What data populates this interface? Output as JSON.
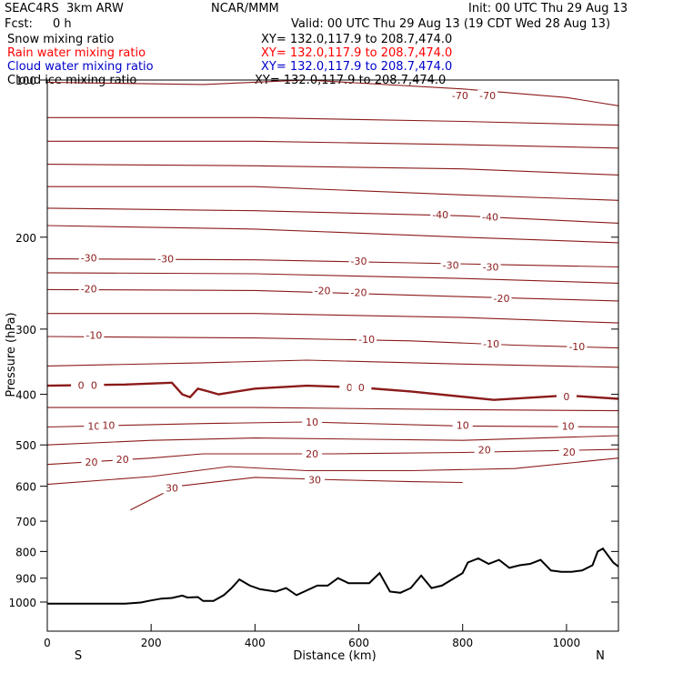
{
  "header": {
    "model": "SEAC4RS  3km ARW",
    "org": "NCAR/MMM",
    "init": "Init: 00 UTC Thu 29 Aug 13",
    "fcst_label": "Fcst:",
    "fcst_value": "0 h",
    "valid": "Valid: 00 UTC Thu 29 Aug 13 (19 CDT Wed 28 Aug 13)"
  },
  "fields": [
    {
      "label": "Snow mixing ratio",
      "xy": "XY= 132.0,117.9 to 208.7,474.0",
      "color": "#000000"
    },
    {
      "label": "Rain water mixing ratio",
      "xy": "XY= 132.0,117.9 to 208.7,474.0",
      "color": "#ff0000"
    },
    {
      "label": "Cloud water mixing ratio",
      "xy": "XY= 132.0,117.9 to 208.7,474.0",
      "color": "#0000cc"
    },
    {
      "label": "Cloud ice mixing ratio",
      "xy": "XY= 132.0,117.9 to 208.7,474.0",
      "color": "#000000"
    }
  ],
  "chart_data": {
    "type": "line",
    "xlabel": "Distance (km)",
    "ylabel": "Pressure (hPa)",
    "xlim": [
      0,
      1100
    ],
    "ylim": [
      1050,
      100
    ],
    "x_ticks": [
      0,
      200,
      400,
      600,
      800,
      1000
    ],
    "y_ticks": [
      100,
      200,
      300,
      400,
      500,
      600,
      700,
      800,
      900,
      1000
    ],
    "x_tick_labels": [
      "0",
      "200",
      "400",
      "600",
      "800",
      "1000"
    ],
    "y_tick_labels": [
      "100",
      "200",
      "300",
      "400",
      "500",
      "600",
      "700",
      "800",
      "900",
      "1000"
    ],
    "end_labels": {
      "left": "S",
      "right": "N"
    },
    "contour_color": "#8b1a1a",
    "terrain_color": "#000000",
    "isotherms": [
      {
        "value": -70,
        "label": "-70",
        "points": [
          [
            0,
            101
          ],
          [
            300,
            102
          ],
          [
            500,
            100
          ],
          [
            800,
            104
          ],
          [
            1000,
            108
          ],
          [
            1100,
            112
          ]
        ],
        "labels_at": [
          [
            795,
            107
          ],
          [
            848,
            107
          ]
        ]
      },
      {
        "value": -60,
        "label": "",
        "points": [
          [
            0,
            118
          ],
          [
            400,
            118
          ],
          [
            800,
            120
          ],
          [
            1100,
            122
          ]
        ],
        "labels_at": []
      },
      {
        "value": -55,
        "label": "",
        "points": [
          [
            0,
            131
          ],
          [
            400,
            131
          ],
          [
            800,
            133
          ],
          [
            1100,
            135
          ]
        ],
        "labels_at": []
      },
      {
        "value": -50,
        "label": "",
        "points": [
          [
            0,
            145
          ],
          [
            400,
            146
          ],
          [
            800,
            148
          ],
          [
            1100,
            152
          ]
        ],
        "labels_at": []
      },
      {
        "value": -45,
        "label": "",
        "points": [
          [
            0,
            160
          ],
          [
            400,
            160
          ],
          [
            800,
            166
          ],
          [
            1100,
            170
          ]
        ],
        "labels_at": []
      },
      {
        "value": -40,
        "label": "-40",
        "points": [
          [
            0,
            176
          ],
          [
            400,
            178
          ],
          [
            800,
            182
          ],
          [
            1100,
            188
          ]
        ],
        "labels_at": [
          [
            757,
            181
          ],
          [
            853,
            183
          ]
        ]
      },
      {
        "value": -35,
        "label": "",
        "points": [
          [
            0,
            190
          ],
          [
            400,
            193
          ],
          [
            800,
            200
          ],
          [
            1100,
            205
          ]
        ],
        "labels_at": []
      },
      {
        "value": -30,
        "label": "-30",
        "points": [
          [
            0,
            220
          ],
          [
            400,
            221
          ],
          [
            700,
            224
          ],
          [
            900,
            226
          ],
          [
            1100,
            228
          ]
        ],
        "labels_at": [
          [
            80,
            219
          ],
          [
            228,
            220
          ],
          [
            600,
            222
          ],
          [
            777,
            226
          ],
          [
            854,
            228
          ]
        ]
      },
      {
        "value": -25,
        "label": "",
        "points": [
          [
            0,
            234
          ],
          [
            400,
            235
          ],
          [
            800,
            240
          ],
          [
            1100,
            245
          ]
        ],
        "labels_at": []
      },
      {
        "value": -20,
        "label": "-20",
        "points": [
          [
            0,
            252
          ],
          [
            400,
            253
          ],
          [
            800,
            260
          ],
          [
            1100,
            265
          ]
        ],
        "labels_at": [
          [
            80,
            251
          ],
          [
            530,
            253
          ],
          [
            600,
            255
          ],
          [
            875,
            262
          ]
        ]
      },
      {
        "value": -15,
        "label": "",
        "points": [
          [
            0,
            280
          ],
          [
            400,
            280
          ],
          [
            800,
            285
          ],
          [
            1100,
            292
          ]
        ],
        "labels_at": []
      },
      {
        "value": -10,
        "label": "-10",
        "points": [
          [
            0,
            310
          ],
          [
            400,
            312
          ],
          [
            700,
            316
          ],
          [
            900,
            322
          ],
          [
            1100,
            326
          ]
        ],
        "labels_at": [
          [
            90,
            308
          ],
          [
            615,
            314
          ],
          [
            855,
            320
          ],
          [
            1020,
            324
          ]
        ]
      },
      {
        "value": -5,
        "label": "",
        "points": [
          [
            0,
            353
          ],
          [
            300,
            348
          ],
          [
            500,
            344
          ],
          [
            800,
            350
          ],
          [
            1100,
            355
          ]
        ],
        "labels_at": []
      },
      {
        "value": 0,
        "label": "0",
        "bold": true,
        "points": [
          [
            0,
            385
          ],
          [
            150,
            383
          ],
          [
            240,
            380
          ],
          [
            260,
            400
          ],
          [
            275,
            405
          ],
          [
            290,
            390
          ],
          [
            310,
            395
          ],
          [
            330,
            400
          ],
          [
            400,
            390
          ],
          [
            500,
            385
          ],
          [
            600,
            388
          ],
          [
            700,
            395
          ],
          [
            860,
            410
          ],
          [
            1000,
            402
          ],
          [
            1100,
            408
          ]
        ],
        "labels_at": [
          [
            65,
            384
          ],
          [
            90,
            384
          ],
          [
            582,
            388
          ],
          [
            605,
            388
          ],
          [
            1000,
            404
          ]
        ]
      },
      {
        "value": 5,
        "label": "",
        "points": [
          [
            0,
            424
          ],
          [
            400,
            424
          ],
          [
            800,
            428
          ],
          [
            1100,
            430
          ]
        ],
        "labels_at": []
      },
      {
        "value": 10,
        "label": "10",
        "points": [
          [
            0,
            462
          ],
          [
            300,
            455
          ],
          [
            500,
            452
          ],
          [
            800,
            460
          ],
          [
            1100,
            462
          ]
        ],
        "labels_at": [
          [
            90,
            460
          ],
          [
            118,
            458
          ],
          [
            510,
            452
          ],
          [
            800,
            458
          ],
          [
            1003,
            460
          ]
        ]
      },
      {
        "value": 15,
        "label": "",
        "points": [
          [
            0,
            500
          ],
          [
            200,
            490
          ],
          [
            400,
            485
          ],
          [
            800,
            490
          ],
          [
            1100,
            480
          ]
        ],
        "labels_at": []
      },
      {
        "value": 20,
        "label": "20",
        "points": [
          [
            0,
            545
          ],
          [
            200,
            530
          ],
          [
            300,
            520
          ],
          [
            550,
            520
          ],
          [
            800,
            517
          ],
          [
            1100,
            510
          ]
        ],
        "labels_at": [
          [
            85,
            539
          ],
          [
            145,
            533
          ],
          [
            510,
            520
          ],
          [
            842,
            511
          ],
          [
            1005,
            516
          ]
        ]
      },
      {
        "value": 25,
        "label": "",
        "points": [
          [
            0,
            595
          ],
          [
            200,
            575
          ],
          [
            350,
            550
          ],
          [
            500,
            560
          ],
          [
            700,
            560
          ],
          [
            900,
            555
          ],
          [
            1100,
            530
          ]
        ],
        "labels_at": []
      },
      {
        "value": 30,
        "label": "30",
        "points": [
          [
            160,
            666
          ],
          [
            250,
            600
          ],
          [
            400,
            577
          ],
          [
            550,
            583
          ],
          [
            700,
            588
          ],
          [
            800,
            590
          ]
        ],
        "labels_at": [
          [
            240,
            604
          ],
          [
            515,
            583
          ]
        ]
      }
    ],
    "terrain": {
      "x": [
        0,
        150,
        180,
        200,
        220,
        240,
        260,
        270,
        290,
        300,
        320,
        340,
        355,
        370,
        390,
        410,
        440,
        460,
        480,
        520,
        540,
        560,
        580,
        620,
        640,
        660,
        680,
        700,
        720,
        740,
        760,
        800,
        810,
        830,
        850,
        870,
        890,
        910,
        930,
        950,
        970,
        990,
        1010,
        1030,
        1050,
        1060,
        1070,
        1090,
        1100
      ],
      "pressure": [
        1007,
        1007,
        1002,
        993,
        985,
        982,
        972,
        980,
        978,
        995,
        995,
        970,
        940,
        905,
        930,
        945,
        955,
        940,
        970,
        930,
        930,
        900,
        920,
        920,
        880,
        955,
        960,
        940,
        890,
        940,
        930,
        880,
        840,
        825,
        845,
        830,
        860,
        850,
        845,
        830,
        870,
        875,
        875,
        870,
        850,
        800,
        790,
        840,
        855
      ]
    }
  }
}
